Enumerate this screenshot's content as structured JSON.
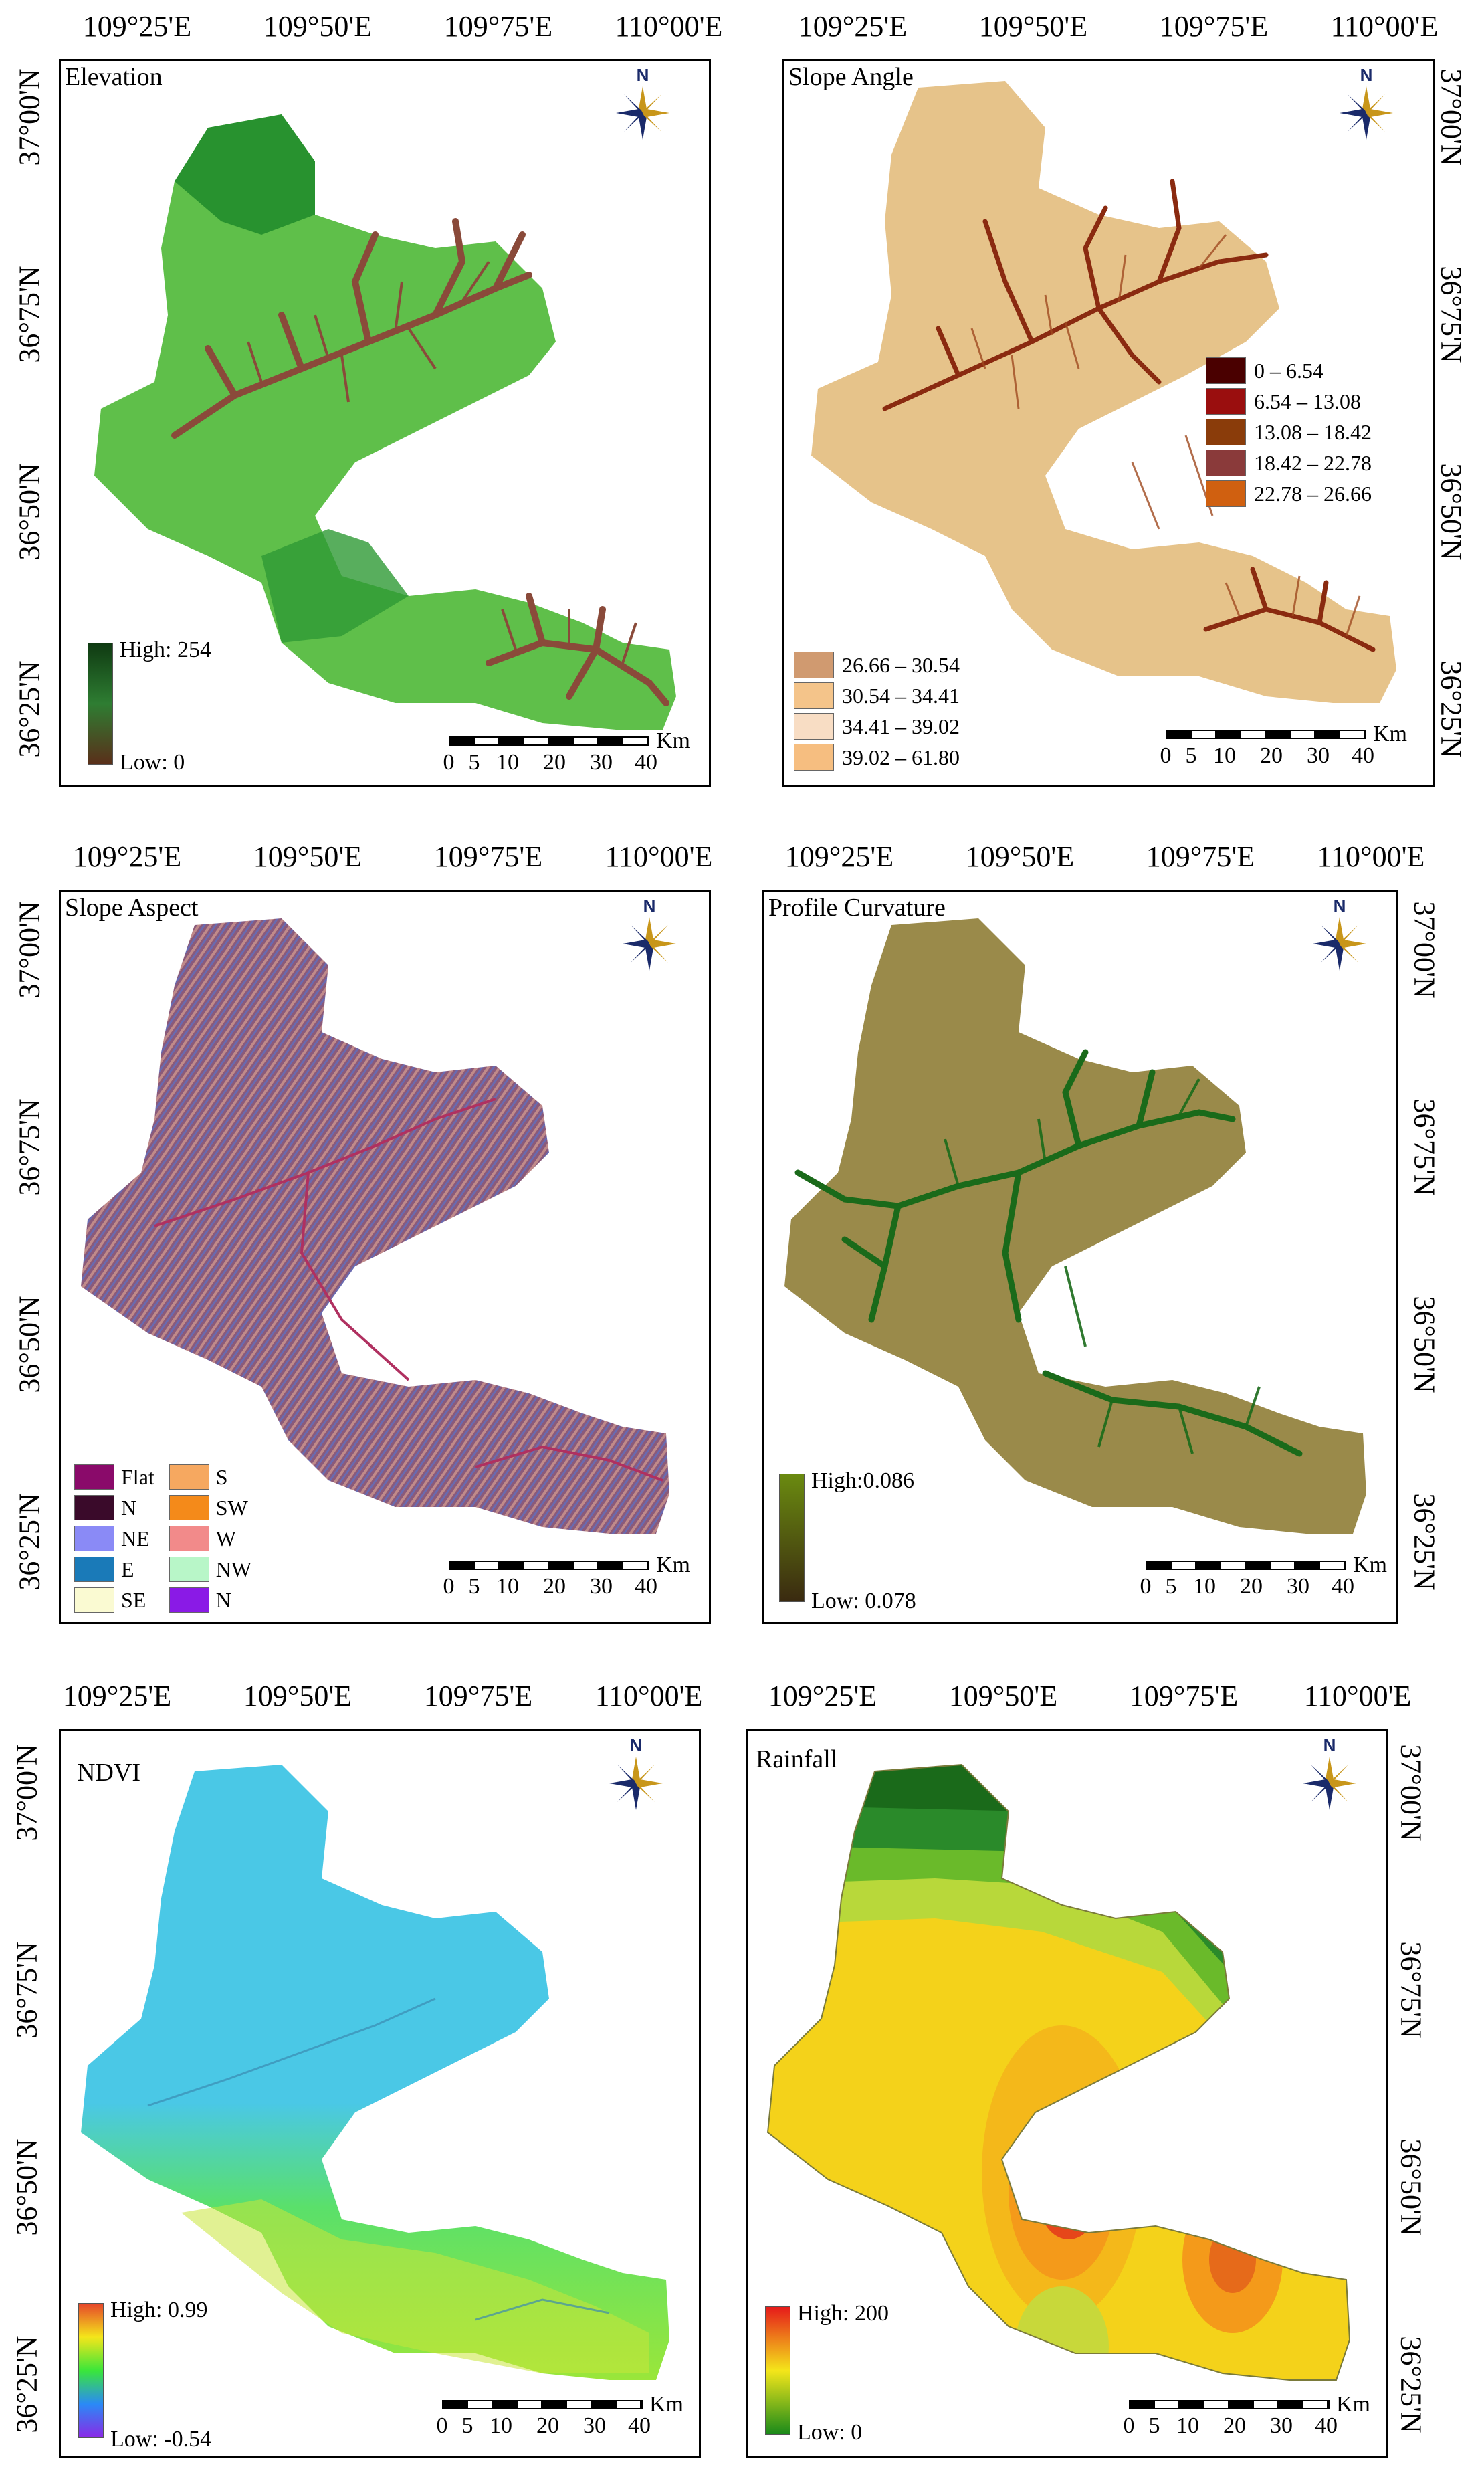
{
  "lon_labels": [
    "109°25'E",
    "109°50'E",
    "109°75'E",
    "110°00'E"
  ],
  "lat_labels": [
    "37°00'N",
    "36°75'N",
    "36°50'N",
    "36°25'N"
  ],
  "north_label": "N",
  "scale": {
    "unit": "Km",
    "ticks": [
      "0",
      "5",
      "10",
      "20",
      "30",
      "40"
    ]
  },
  "panels": {
    "elevation": {
      "title": "Elevation",
      "legend": {
        "high": "High: 254",
        "low": "Low: 0",
        "colors": [
          "#0f3a12",
          "#2e7d32",
          "#5a2f1a"
        ]
      },
      "colors": {
        "base": "#5fbf4a",
        "dark": "#1f8a2a",
        "drainage": "#8a4a3a"
      }
    },
    "slope_angle": {
      "title": "Slope Angle",
      "classes": [
        {
          "label": "0 – 6.54",
          "color": "#4a0000"
        },
        {
          "label": "6.54 – 13.08",
          "color": "#9a0e0e"
        },
        {
          "label": "13.08 – 18.42",
          "color": "#8a3c0a"
        },
        {
          "label": "18.42 – 22.78",
          "color": "#8a3a3a"
        },
        {
          "label": "22.78 – 26.66",
          "color": "#d06010"
        },
        {
          "label": "26.66 – 30.54",
          "color": "#d09a70"
        },
        {
          "label": "30.54 – 34.41",
          "color": "#f4c48a"
        },
        {
          "label": "34.41 – 39.02",
          "color": "#f8ddc4"
        },
        {
          "label": "39.02 – 61.80",
          "color": "#f6be80"
        }
      ],
      "colors": {
        "base": "#e6c38a",
        "drainage": "#8a2a10"
      }
    },
    "slope_aspect": {
      "title": "Slope Aspect",
      "classes_left": [
        {
          "label": "Flat",
          "color": "#8a0a6a"
        },
        {
          "label": "N",
          "color": "#3a0a2a"
        },
        {
          "label": "NE",
          "color": "#8a8af6"
        },
        {
          "label": "E",
          "color": "#1a7ab8"
        },
        {
          "label": "SE",
          "color": "#fafad2"
        }
      ],
      "classes_right": [
        {
          "label": "S",
          "color": "#f6a860"
        },
        {
          "label": "SW",
          "color": "#f48a1a"
        },
        {
          "label": "W",
          "color": "#f28a8a"
        },
        {
          "label": "NW",
          "color": "#b8f6c8"
        },
        {
          "label": "N",
          "color": "#8a1ae6"
        }
      ],
      "colors": {
        "base": "#9a6a82",
        "drainage": "#b03060"
      }
    },
    "profile_curvature": {
      "title": "Profile Curvature",
      "legend": {
        "high": "High:0.086",
        "low": "Low: 0.078",
        "colors": [
          "#6a8a10",
          "#3a2a10"
        ]
      },
      "colors": {
        "base": "#9a8a4a",
        "drainage": "#1a6a1a"
      }
    },
    "ndvi": {
      "title": "NDVI",
      "legend": {
        "high": "High: 0.99",
        "low": "Low: -0.54",
        "colors": [
          "#e6462a",
          "#f4e61a",
          "#3ae63a",
          "#2a8af6",
          "#8a2ae6"
        ]
      },
      "colors": {
        "base": "#4ac8e6",
        "south": "#5ae06a",
        "yellow": "#c8e63a"
      }
    },
    "rainfall": {
      "title": "Rainfall",
      "legend": {
        "high": "High: 200",
        "low": "Low: 0",
        "colors": [
          "#e61a1a",
          "#f4e61a",
          "#1a8a1a"
        ]
      },
      "colors": {
        "green": "#2a8a2a",
        "yellow": "#f4d21a",
        "orange": "#f49a1a",
        "red": "#e6461a"
      }
    }
  }
}
